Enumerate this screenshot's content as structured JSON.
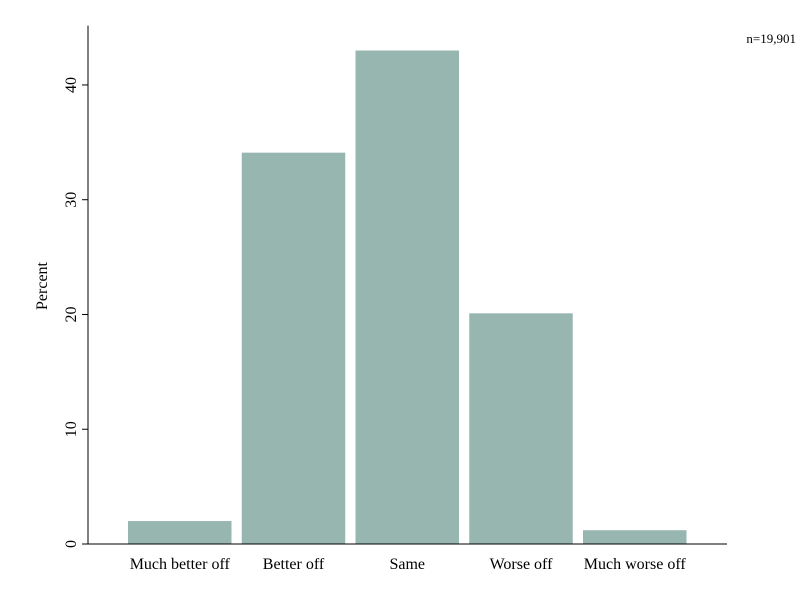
{
  "chart_data": {
    "type": "bar",
    "categories": [
      "Much better off",
      "Better off",
      "Same",
      "Worse off",
      "Much worse off"
    ],
    "values": [
      2.0,
      34.1,
      43.0,
      20.1,
      1.2
    ],
    "ylabel": "Percent",
    "xlabel": "",
    "ylim": [
      0,
      45
    ],
    "yticks": [
      0,
      10,
      20,
      30,
      40
    ],
    "note": "n=19,901",
    "grid": false,
    "bar_color": "#97b6b0"
  }
}
